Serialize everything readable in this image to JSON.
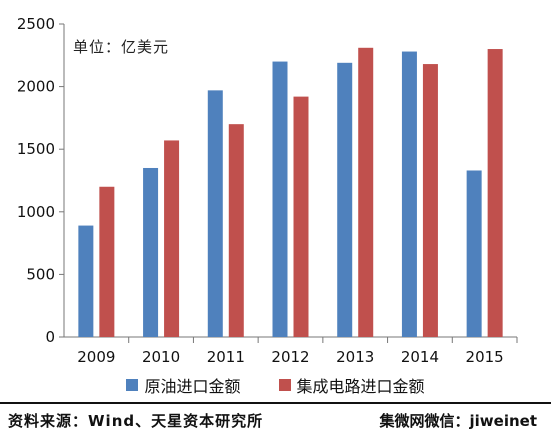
{
  "colors": {
    "series1": "#4F81BD",
    "series2": "#C0504D",
    "axis": "#777777"
  },
  "unit_label": "单位：亿美元",
  "footer": {
    "source": "资料来源：Wind、天星资本研究所",
    "watermark": "集微网微信：jiweinet"
  },
  "chart_data": {
    "type": "bar",
    "title": "",
    "xlabel": "",
    "ylabel": "",
    "categories": [
      "2009",
      "2010",
      "2011",
      "2012",
      "2013",
      "2014",
      "2015"
    ],
    "series": [
      {
        "name": "原油进口金额",
        "values": [
          890,
          1350,
          1970,
          2200,
          2190,
          2280,
          1330
        ]
      },
      {
        "name": "集成电路进口金额",
        "values": [
          1200,
          1570,
          1700,
          1920,
          2310,
          2180,
          2300
        ]
      }
    ],
    "ylim": [
      0,
      2500
    ],
    "yticks": [
      "0",
      "500",
      "1000",
      "1500",
      "2000",
      "2500"
    ],
    "grid": false,
    "legend_position": "bottom"
  }
}
